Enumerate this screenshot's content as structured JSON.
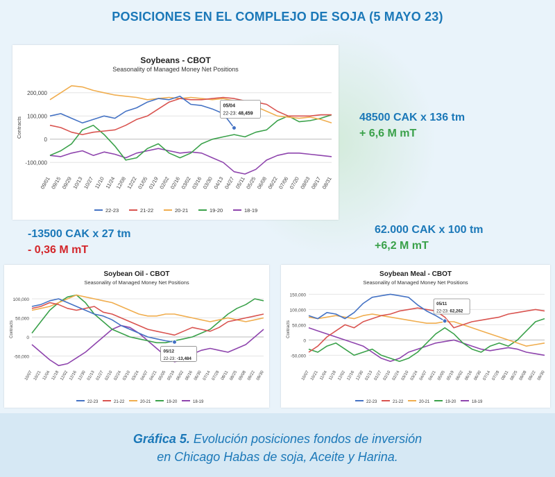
{
  "page": {
    "title": "POSICIONES EN EL COMPLEJO DE SOJA (5 MAYO 23)",
    "caption_bold": "Gráfica 5.",
    "caption_line1_rest": " Evolución posiciones fondos de inversión",
    "caption_line2": "en Chicago Habas de soja, Aceite y Harina."
  },
  "notes": {
    "soybeans": {
      "line1": "48500 CAK x 136 tm",
      "line2": "+ 6,6 M mT"
    },
    "oil": {
      "line1": "-13500 CAK x 27 tm",
      "line2": "- 0,36 M mT"
    },
    "meal": {
      "line1": "62.000 CAK x 100 tm",
      "line2": "+6,2 M mT"
    }
  },
  "colors": {
    "22-23": "#4472c4",
    "21-22": "#d9534f",
    "20-21": "#f0ad4e",
    "19-20": "#3aa14a",
    "18-19": "#8e44ad",
    "note_blue": "#1b78b8",
    "note_green": "#3aa14a",
    "note_red": "#d3262b"
  },
  "chart_data": [
    {
      "id": "soybeans",
      "type": "line",
      "title": "Soybeans - CBOT",
      "subtitle": "Seasonality of Managed Money Net Positions",
      "ylabel": "Contracts",
      "ylim": [
        -150000,
        250000
      ],
      "yticks": [
        -100000,
        0,
        100000,
        200000
      ],
      "ytick_labels": [
        "-100,000",
        "0",
        "100,000",
        "200,000"
      ],
      "categories": [
        "09/01",
        "09/15",
        "09/29",
        "10/13",
        "10/27",
        "11/10",
        "11/24",
        "12/08",
        "12/22",
        "01/05",
        "01/19",
        "02/02",
        "02/16",
        "03/02",
        "03/16",
        "03/30",
        "04/13",
        "04/27",
        "05/11",
        "05/25",
        "06/08",
        "06/22",
        "07/06",
        "07/20",
        "08/03",
        "08/17",
        "08/31"
      ],
      "tooltip": {
        "index": 17,
        "date": "05/04",
        "label": "22-23:",
        "value": "48,459"
      },
      "legend_position": "bottom",
      "series": [
        {
          "name": "22-23",
          "values": [
            100000,
            110000,
            90000,
            70000,
            85000,
            100000,
            90000,
            120000,
            135000,
            160000,
            175000,
            170000,
            185000,
            150000,
            145000,
            130000,
            110000,
            48459,
            null,
            null,
            null,
            null,
            null,
            null,
            null,
            null,
            null
          ]
        },
        {
          "name": "21-22",
          "values": [
            60000,
            50000,
            30000,
            20000,
            30000,
            35000,
            40000,
            60000,
            85000,
            100000,
            130000,
            160000,
            175000,
            170000,
            170000,
            175000,
            180000,
            175000,
            165000,
            160000,
            150000,
            120000,
            100000,
            100000,
            100000,
            105000,
            105000
          ]
        },
        {
          "name": "20-21",
          "values": [
            170000,
            200000,
            230000,
            225000,
            210000,
            200000,
            190000,
            185000,
            180000,
            170000,
            175000,
            180000,
            175000,
            180000,
            175000,
            170000,
            175000,
            165000,
            160000,
            140000,
            120000,
            100000,
            95000,
            90000,
            95000,
            85000,
            70000
          ]
        },
        {
          "name": "19-20",
          "values": [
            -70000,
            -50000,
            -20000,
            40000,
            60000,
            20000,
            -30000,
            -90000,
            -80000,
            -40000,
            -20000,
            -60000,
            -80000,
            -60000,
            -20000,
            0,
            10000,
            20000,
            10000,
            30000,
            40000,
            80000,
            100000,
            75000,
            80000,
            90000,
            105000
          ]
        },
        {
          "name": "18-19",
          "values": [
            -70000,
            -75000,
            -60000,
            -50000,
            -70000,
            -55000,
            -65000,
            -80000,
            -60000,
            -50000,
            -40000,
            -50000,
            -60000,
            -55000,
            -60000,
            -80000,
            -100000,
            -140000,
            -150000,
            -130000,
            -90000,
            -70000,
            -60000,
            -60000,
            -65000,
            -70000,
            -75000
          ]
        }
      ]
    },
    {
      "id": "oil",
      "type": "line",
      "title": "Soybean Oil - CBOT",
      "subtitle": "Seasonality of Managed Money Net Positions",
      "ylabel": "Contracts",
      "ylim": [
        -80000,
        120000
      ],
      "yticks": [
        -50000,
        0,
        50000,
        100000
      ],
      "ytick_labels": [
        "-50,000",
        "0",
        "50,000",
        "100,000"
      ],
      "categories": [
        "10/07",
        "10/21",
        "11/04",
        "11/18",
        "12/02",
        "12/16",
        "12/30",
        "01/13",
        "01/27",
        "02/10",
        "02/24",
        "03/10",
        "03/24",
        "04/07",
        "04/21",
        "05/05",
        "05/19",
        "06/02",
        "06/16",
        "06/30",
        "07/14",
        "07/28",
        "08/11",
        "08/25",
        "09/08",
        "09/22",
        "09/30"
      ],
      "tooltip": {
        "index": 16,
        "date": "05/12",
        "label": "22-23:",
        "value": "-13,484"
      },
      "legend_position": "bottom",
      "series": [
        {
          "name": "22-23",
          "values": [
            80000,
            85000,
            95000,
            100000,
            90000,
            80000,
            70000,
            60000,
            55000,
            45000,
            30000,
            20000,
            10000,
            0,
            -5000,
            -10000,
            -13484,
            null,
            null,
            null,
            null,
            null,
            null,
            null,
            null,
            null,
            null
          ]
        },
        {
          "name": "21-22",
          "values": [
            75000,
            80000,
            90000,
            85000,
            75000,
            70000,
            75000,
            80000,
            65000,
            60000,
            50000,
            40000,
            30000,
            20000,
            15000,
            10000,
            5000,
            15000,
            25000,
            20000,
            15000,
            25000,
            40000,
            45000,
            50000,
            55000,
            60000
          ]
        },
        {
          "name": "20-21",
          "values": [
            70000,
            75000,
            80000,
            90000,
            100000,
            110000,
            105000,
            100000,
            95000,
            90000,
            80000,
            70000,
            60000,
            55000,
            55000,
            60000,
            60000,
            55000,
            50000,
            45000,
            40000,
            45000,
            50000,
            45000,
            40000,
            45000,
            50000
          ]
        },
        {
          "name": "19-20",
          "values": [
            10000,
            40000,
            70000,
            90000,
            105000,
            110000,
            90000,
            60000,
            40000,
            20000,
            10000,
            0,
            -5000,
            -10000,
            -15000,
            -15000,
            -10000,
            -5000,
            0,
            10000,
            20000,
            40000,
            60000,
            75000,
            85000,
            100000,
            95000
          ]
        },
        {
          "name": "18-19",
          "values": [
            -20000,
            -40000,
            -60000,
            -75000,
            -70000,
            -55000,
            -40000,
            -20000,
            0,
            20000,
            30000,
            25000,
            10000,
            -10000,
            -30000,
            -50000,
            -65000,
            -60000,
            -45000,
            -35000,
            -30000,
            -35000,
            -40000,
            -30000,
            -20000,
            0,
            20000
          ]
        }
      ]
    },
    {
      "id": "meal",
      "type": "line",
      "title": "Soybean Meal - CBOT",
      "subtitle": "Seasonality of Managed Money Net Positions",
      "ylabel": "Contracts",
      "ylim": [
        -90000,
        160000
      ],
      "yticks": [
        -50000,
        0,
        50000,
        100000,
        150000
      ],
      "ytick_labels": [
        "-50,000",
        "0",
        "50,000",
        "100,000",
        "150,000"
      ],
      "categories": [
        "10/07",
        "10/21",
        "11/04",
        "11/18",
        "12/02",
        "12/16",
        "12/30",
        "01/13",
        "01/27",
        "02/10",
        "02/24",
        "03/10",
        "03/24",
        "04/07",
        "04/21",
        "05/05",
        "05/19",
        "06/02",
        "06/16",
        "06/30",
        "07/14",
        "07/28",
        "08/11",
        "08/25",
        "09/08",
        "09/22",
        "09/30"
      ],
      "tooltip": {
        "index": 15,
        "date": "05/11",
        "label": "22-23:",
        "value": "62,262"
      },
      "legend_position": "bottom",
      "series": [
        {
          "name": "22-23",
          "values": [
            80000,
            70000,
            90000,
            85000,
            70000,
            90000,
            120000,
            140000,
            145000,
            150000,
            145000,
            140000,
            115000,
            95000,
            80000,
            62262,
            null,
            null,
            null,
            null,
            null,
            null,
            null,
            null,
            null,
            null,
            null
          ]
        },
        {
          "name": "21-22",
          "values": [
            -40000,
            -20000,
            10000,
            30000,
            50000,
            40000,
            60000,
            70000,
            80000,
            85000,
            95000,
            100000,
            105000,
            100000,
            95000,
            75000,
            40000,
            50000,
            60000,
            65000,
            70000,
            75000,
            85000,
            90000,
            95000,
            100000,
            95000
          ]
        },
        {
          "name": "20-21",
          "values": [
            75000,
            70000,
            75000,
            80000,
            75000,
            70000,
            80000,
            85000,
            80000,
            75000,
            70000,
            65000,
            60000,
            55000,
            55000,
            60000,
            60000,
            50000,
            40000,
            30000,
            20000,
            10000,
            0,
            -10000,
            -20000,
            -15000,
            -10000
          ]
        },
        {
          "name": "19-20",
          "values": [
            -30000,
            -40000,
            -20000,
            -10000,
            -30000,
            -50000,
            -40000,
            -30000,
            -50000,
            -60000,
            -70000,
            -60000,
            -40000,
            -10000,
            20000,
            40000,
            20000,
            -10000,
            -30000,
            -40000,
            -20000,
            -10000,
            -20000,
            0,
            30000,
            60000,
            70000
          ]
        },
        {
          "name": "18-19",
          "values": [
            40000,
            30000,
            20000,
            10000,
            0,
            -10000,
            -20000,
            -40000,
            -60000,
            -70000,
            -60000,
            -40000,
            -30000,
            -20000,
            -10000,
            -5000,
            0,
            -10000,
            -20000,
            -30000,
            -35000,
            -30000,
            -25000,
            -30000,
            -40000,
            -45000,
            -50000
          ]
        }
      ]
    }
  ]
}
